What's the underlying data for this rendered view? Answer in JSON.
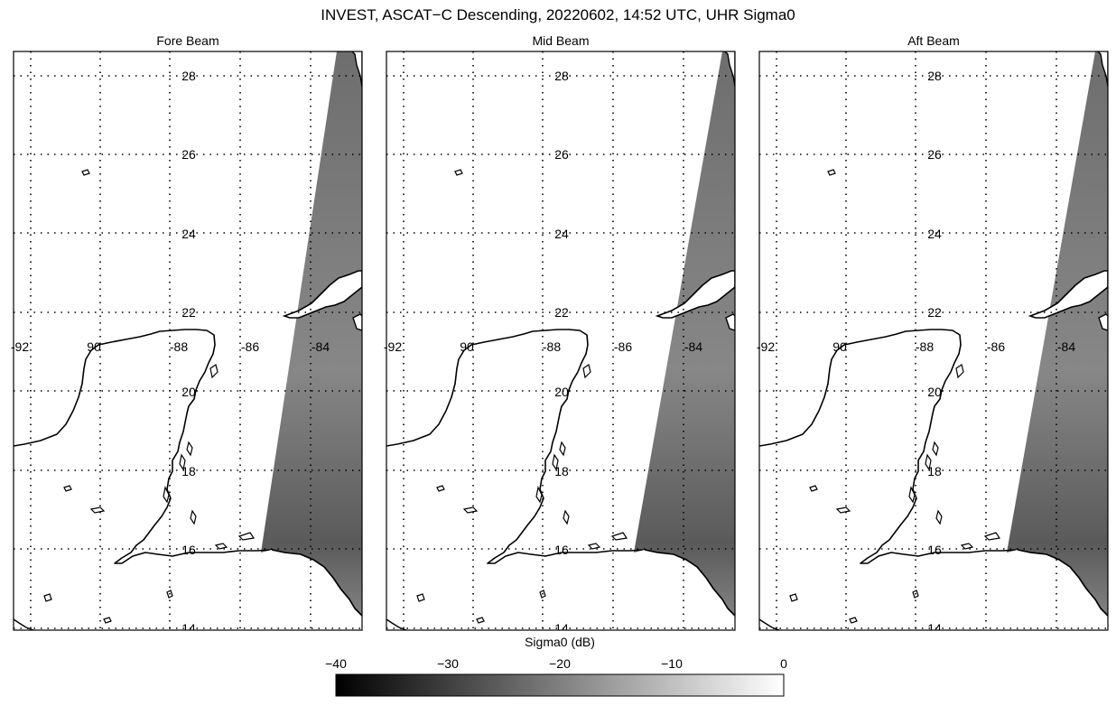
{
  "title": "INVEST, ASCAT−C Descending, 20220602, 14:52 UTC, UHR Sigma0",
  "panels": [
    {
      "title": "Fore Beam"
    },
    {
      "title": "Mid Beam"
    },
    {
      "title": "Aft Beam"
    }
  ],
  "latitude_labels": [
    "28",
    "26",
    "24",
    "22",
    "20",
    "18",
    "16",
    "14"
  ],
  "longitude_labels": [
    "-92",
    "90",
    "-88",
    "-86",
    "-84"
  ],
  "colorbar": {
    "label": "Sigma0 (dB)",
    "ticks": [
      "−40",
      "−30",
      "−20",
      "−10",
      "0"
    ],
    "range": [
      -40,
      0
    ],
    "colormap": "grayscale"
  },
  "colors": {
    "frame": "#000000",
    "swath": "#7f7f7f",
    "background": "#ffffff"
  }
}
